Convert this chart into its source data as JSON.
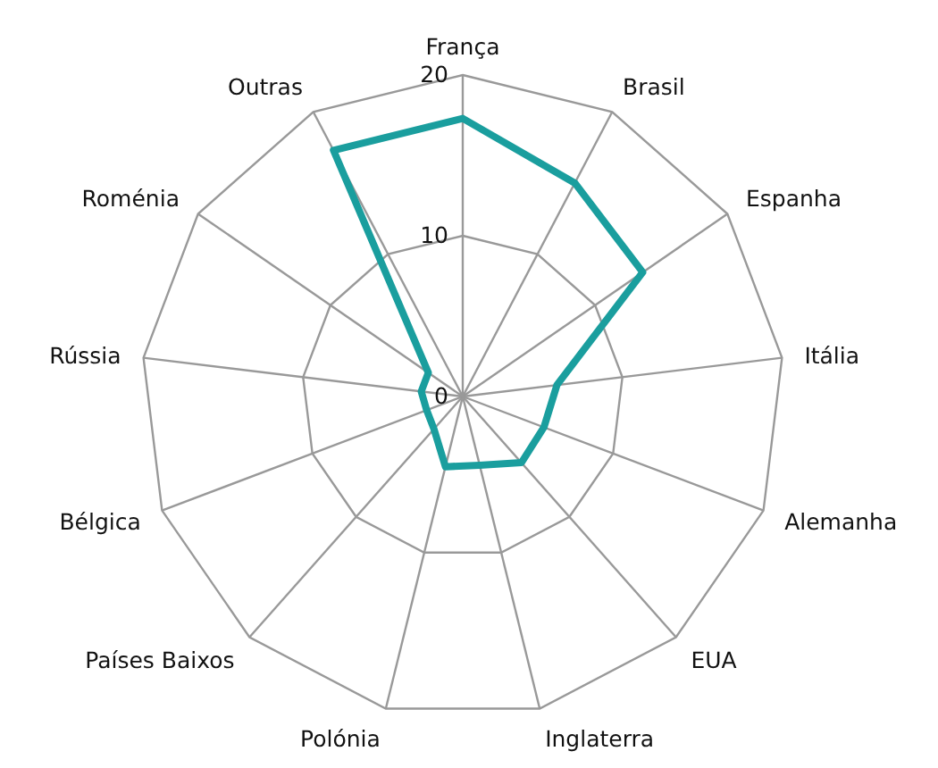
{
  "chart_data": {
    "type": "radar",
    "categories": [
      "França",
      "Brasil",
      "Espanha",
      "Itália",
      "Alemanha",
      "EUA",
      "Inglaterra",
      "Polónia",
      "Países Baixos",
      "Bélgica",
      "Rússia",
      "Roménia",
      "Outras"
    ],
    "series": [
      {
        "color": "#1a9e9e",
        "values": [
          17.3,
          15,
          13.6,
          5.9,
          5.4,
          5.5,
          4.4,
          4.5,
          2.7,
          2.4,
          2.6,
          2.6,
          17.3
        ]
      }
    ],
    "ylim": [
      0,
      20
    ],
    "yticks": [
      0,
      10,
      20
    ],
    "grid": true,
    "marker": "none"
  }
}
